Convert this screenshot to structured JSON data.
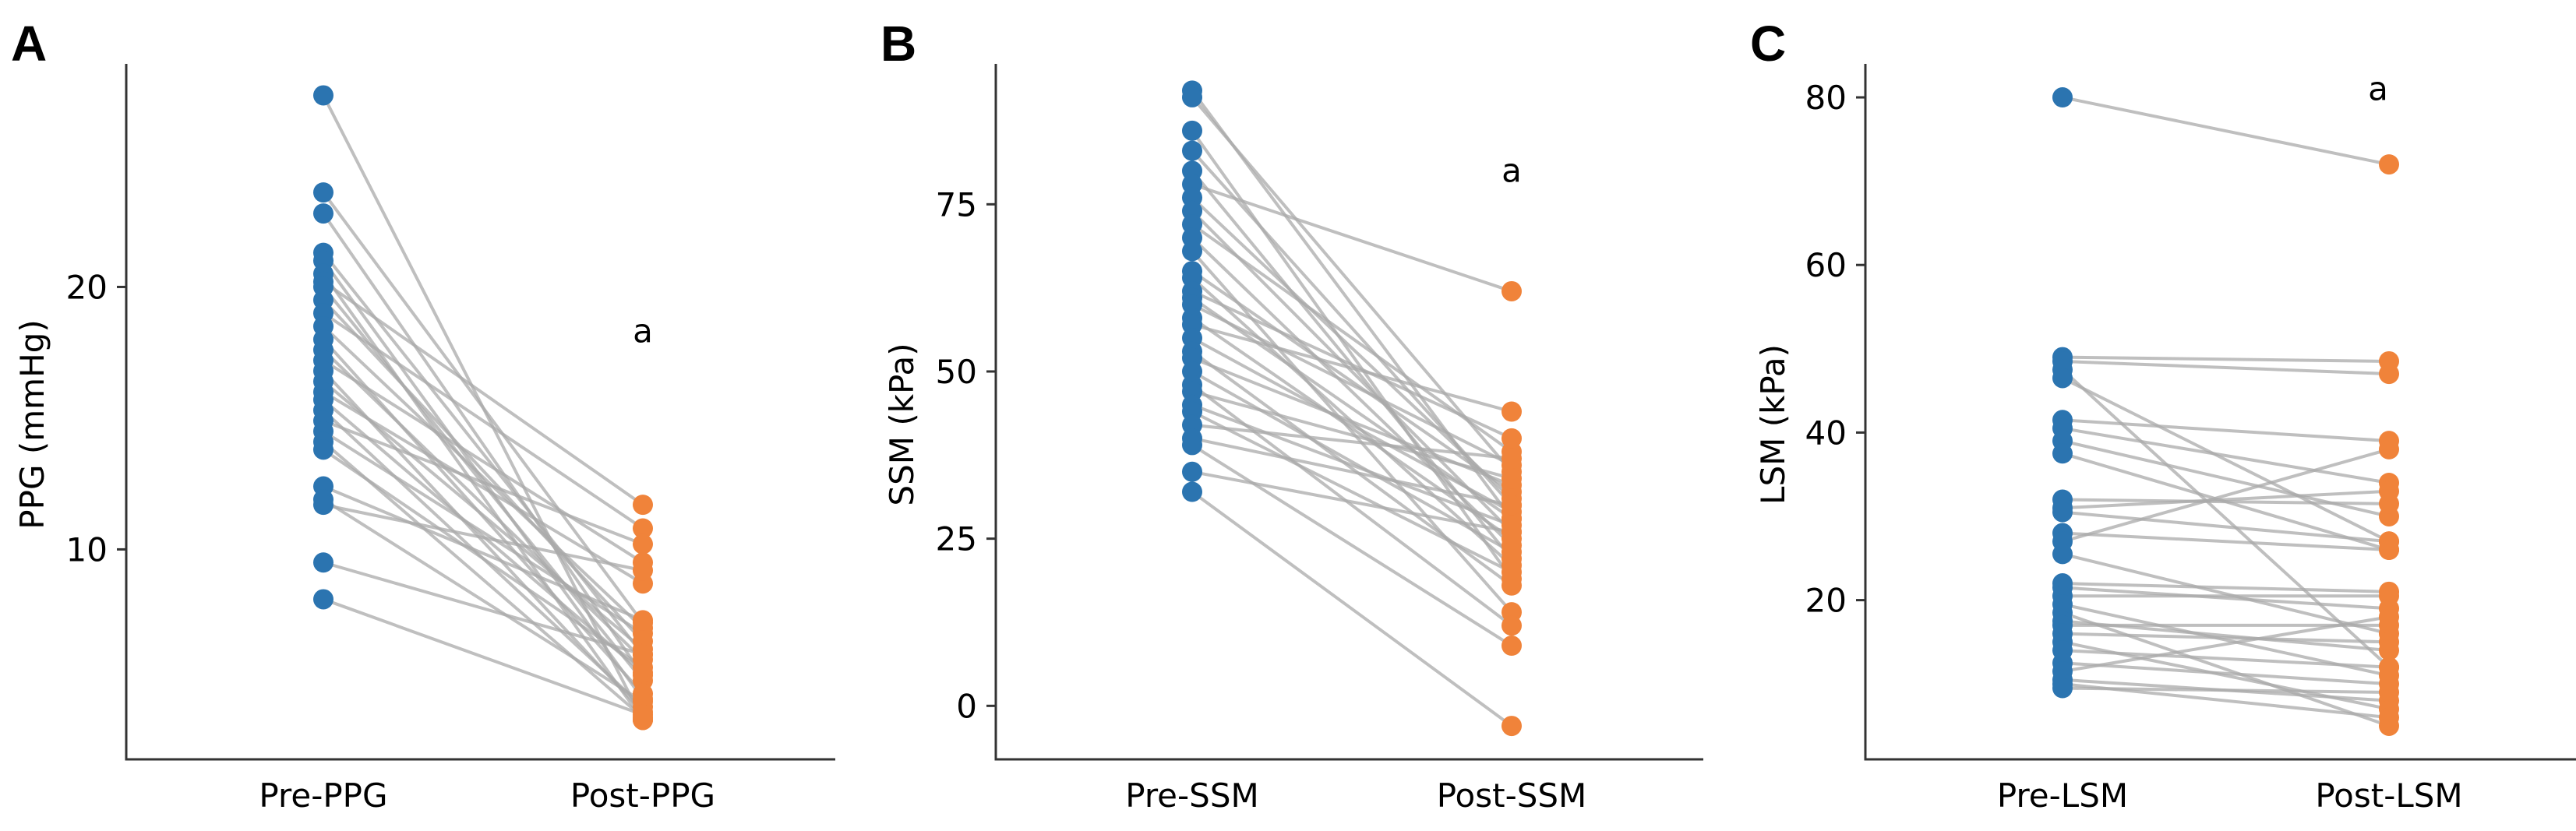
{
  "colors": {
    "pre": "#2b74b0",
    "post": "#f0833a",
    "line": "#a9a9a9",
    "axis": "#333333"
  },
  "chart_data": [
    {
      "type": "scatter",
      "panel": "A",
      "title": "",
      "xlabel": "",
      "ylabel": "PPG (mmHg)",
      "categories": [
        "Pre-PPG",
        "Post-PPG"
      ],
      "ylim": [
        2.0,
        28.5
      ],
      "yticks": [
        10,
        20
      ],
      "annotation": "a",
      "annotation_y": 18.3,
      "pairs": [
        [
          27.3,
          3.5
        ],
        [
          23.6,
          7.2
        ],
        [
          22.8,
          5.2
        ],
        [
          21.3,
          6.0
        ],
        [
          21.0,
          4.3
        ],
        [
          20.5,
          3.5
        ],
        [
          20.2,
          11.7
        ],
        [
          20.0,
          5.0
        ],
        [
          19.5,
          6.5
        ],
        [
          19.0,
          10.8
        ],
        [
          18.5,
          7.0
        ],
        [
          18.0,
          4.5
        ],
        [
          17.6,
          5.8
        ],
        [
          17.2,
          9.5
        ],
        [
          16.8,
          3.8
        ],
        [
          16.4,
          6.2
        ],
        [
          16.0,
          8.7
        ],
        [
          15.7,
          5.3
        ],
        [
          15.3,
          4.0
        ],
        [
          14.9,
          10.2
        ],
        [
          14.5,
          6.8
        ],
        [
          14.1,
          3.6
        ],
        [
          13.8,
          5.5
        ],
        [
          12.4,
          7.3
        ],
        [
          11.9,
          4.2
        ],
        [
          11.7,
          9.2
        ],
        [
          9.5,
          6.0
        ],
        [
          8.1,
          3.7
        ]
      ]
    },
    {
      "type": "scatter",
      "panel": "B",
      "title": "",
      "xlabel": "",
      "ylabel": "SSM (kPa)",
      "categories": [
        "Pre-SSM",
        "Post-SSM"
      ],
      "ylim": [
        -8,
        96
      ],
      "yticks": [
        0,
        25,
        50,
        75
      ],
      "annotation": "a",
      "annotation_y": 80,
      "pairs": [
        [
          92,
          28
        ],
        [
          91,
          35
        ],
        [
          86,
          19
        ],
        [
          83,
          30
        ],
        [
          80,
          22
        ],
        [
          78,
          62
        ],
        [
          76,
          31
        ],
        [
          74,
          26
        ],
        [
          72,
          38
        ],
        [
          70,
          24
        ],
        [
          68,
          14
        ],
        [
          65,
          32
        ],
        [
          64,
          21
        ],
        [
          62,
          40
        ],
        [
          61,
          28
        ],
        [
          60,
          36
        ],
        [
          58,
          25
        ],
        [
          57,
          44
        ],
        [
          55,
          29
        ],
        [
          53,
          18
        ],
        [
          52,
          33
        ],
        [
          50,
          23
        ],
        [
          48,
          12
        ],
        [
          47,
          34
        ],
        [
          45,
          27
        ],
        [
          44,
          20
        ],
        [
          42,
          37
        ],
        [
          40,
          30
        ],
        [
          39,
          9
        ],
        [
          35,
          26
        ],
        [
          32,
          -3
        ]
      ]
    },
    {
      "type": "scatter",
      "panel": "C",
      "title": "",
      "xlabel": "",
      "ylabel": "LSM (kPa)",
      "categories": [
        "Pre-LSM",
        "Post-LSM"
      ],
      "ylim": [
        1,
        84
      ],
      "yticks": [
        20,
        40,
        60,
        80
      ],
      "annotation": "a",
      "annotation_y": 81,
      "pairs": [
        [
          80,
          72
        ],
        [
          49,
          48.5
        ],
        [
          48.5,
          47
        ],
        [
          47.5,
          12
        ],
        [
          46.5,
          27
        ],
        [
          41.5,
          39
        ],
        [
          40.5,
          34
        ],
        [
          39,
          30
        ],
        [
          37.5,
          26
        ],
        [
          32,
          31.5
        ],
        [
          31,
          33
        ],
        [
          30.5,
          27
        ],
        [
          28,
          26
        ],
        [
          27,
          38
        ],
        [
          25.5,
          16
        ],
        [
          22,
          21
        ],
        [
          21.5,
          19
        ],
        [
          20.5,
          20.5
        ],
        [
          19.5,
          11
        ],
        [
          18.5,
          5
        ],
        [
          17.5,
          14
        ],
        [
          17,
          17
        ],
        [
          16,
          15
        ],
        [
          15,
          7
        ],
        [
          14,
          12
        ],
        [
          12.5,
          10
        ],
        [
          11.5,
          18
        ],
        [
          10.5,
          8
        ],
        [
          10,
          6
        ],
        [
          9.5,
          9
        ]
      ]
    }
  ]
}
